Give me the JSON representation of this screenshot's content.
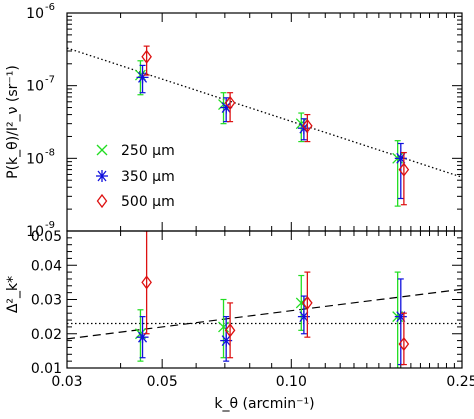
{
  "chart_data": [
    {
      "type": "scatter",
      "panel": "top",
      "xscale": "log",
      "yscale": "log",
      "xlim": [
        0.03,
        0.25
      ],
      "ylim": [
        1e-09,
        1e-06
      ],
      "ylabel": "P(k_θ)/I²_ν   (sr⁻¹)",
      "y_ticks": [
        {
          "value": 1e-09,
          "base": "10",
          "exp": "-9"
        },
        {
          "value": 1e-08,
          "base": "10",
          "exp": "-8"
        },
        {
          "value": 1e-07,
          "base": "10",
          "exp": "-7"
        },
        {
          "value": 1e-06,
          "base": "10",
          "exp": "-6"
        }
      ],
      "fit_line": {
        "style": "dotted",
        "x": [
          0.03,
          0.25
        ],
        "y": [
          3.3e-07,
          5.5e-09
        ]
      },
      "legend_position": "center-left",
      "series": [
        {
          "name": "250 μm",
          "marker": "x",
          "color": "#22dd22",
          "points": [
            {
              "x": 0.0445,
              "y": 1.4e-07,
              "ylo": 7.5e-08,
              "yhi": 2.2e-07
            },
            {
              "x": 0.0695,
              "y": 5.5e-08,
              "ylo": 3e-08,
              "yhi": 8e-08
            },
            {
              "x": 0.1055,
              "y": 3e-08,
              "ylo": 1.7e-08,
              "yhi": 4.2e-08
            },
            {
              "x": 0.177,
              "y": 1e-08,
              "ylo": 2.2e-09,
              "yhi": 1.75e-08
            }
          ]
        },
        {
          "name": "350 μm",
          "marker": "asterisk",
          "color": "#1010dd",
          "points": [
            {
              "x": 0.045,
              "y": 1.3e-07,
              "ylo": 8e-08,
              "yhi": 1.9e-07
            },
            {
              "x": 0.0705,
              "y": 5e-08,
              "ylo": 3.2e-08,
              "yhi": 6.8e-08
            },
            {
              "x": 0.107,
              "y": 2.6e-08,
              "ylo": 1.8e-08,
              "yhi": 3.5e-08
            },
            {
              "x": 0.18,
              "y": 1e-08,
              "ylo": 2.8e-09,
              "yhi": 1.6e-08
            }
          ]
        },
        {
          "name": "500 μm",
          "marker": "diamond",
          "color": "#dd1111",
          "points": [
            {
              "x": 0.046,
              "y": 2.5e-07,
              "ylo": 1.4e-07,
              "yhi": 3.5e-07
            },
            {
              "x": 0.072,
              "y": 5.8e-08,
              "ylo": 3.2e-08,
              "yhi": 8e-08
            },
            {
              "x": 0.109,
              "y": 2.8e-08,
              "ylo": 1.7e-08,
              "yhi": 4e-08
            },
            {
              "x": 0.183,
              "y": 7e-09,
              "ylo": 2.3e-09,
              "yhi": 1.2e-08
            }
          ]
        }
      ]
    },
    {
      "type": "scatter",
      "panel": "bottom",
      "xscale": "log",
      "xlim": [
        0.03,
        0.25
      ],
      "ylim": [
        0.01,
        0.05
      ],
      "ylabel": "Δ²_k*",
      "xlabel": "k_θ (arcmin⁻¹)",
      "x_ticks": [
        {
          "value": 0.03,
          "label": "0.03"
        },
        {
          "value": 0.05,
          "label": "0.05"
        },
        {
          "value": 0.1,
          "label": "0.10"
        },
        {
          "value": 0.25,
          "label": "0.25"
        }
      ],
      "y_ticks": [
        {
          "value": 0.01,
          "label": "0.01"
        },
        {
          "value": 0.02,
          "label": "0.02"
        },
        {
          "value": 0.03,
          "label": "0.03"
        },
        {
          "value": 0.04,
          "label": "0.04"
        },
        {
          "value": 0.05,
          "label": "0.05"
        }
      ],
      "constant_line": {
        "style": "dotted",
        "y": 0.023
      },
      "fit_line": {
        "style": "dashed",
        "x": [
          0.03,
          0.25
        ],
        "y": [
          0.0185,
          0.033
        ]
      },
      "series": [
        {
          "name": "250 μm",
          "marker": "x",
          "color": "#22dd22",
          "points": [
            {
              "x": 0.0445,
              "y": 0.02,
              "ylo": 0.012,
              "yhi": 0.027
            },
            {
              "x": 0.0695,
              "y": 0.022,
              "ylo": 0.013,
              "yhi": 0.03
            },
            {
              "x": 0.1055,
              "y": 0.029,
              "ylo": 0.021,
              "yhi": 0.037
            },
            {
              "x": 0.177,
              "y": 0.025,
              "ylo": 0.01,
              "yhi": 0.038
            }
          ]
        },
        {
          "name": "350 μm",
          "marker": "asterisk",
          "color": "#1010dd",
          "points": [
            {
              "x": 0.045,
              "y": 0.019,
              "ylo": 0.013,
              "yhi": 0.025
            },
            {
              "x": 0.0705,
              "y": 0.018,
              "ylo": 0.012,
              "yhi": 0.025
            },
            {
              "x": 0.107,
              "y": 0.025,
              "ylo": 0.02,
              "yhi": 0.031
            },
            {
              "x": 0.18,
              "y": 0.025,
              "ylo": 0.011,
              "yhi": 0.036
            }
          ]
        },
        {
          "name": "500 μm",
          "marker": "diamond",
          "color": "#dd1111",
          "points": [
            {
              "x": 0.046,
              "y": 0.035,
              "ylo": 0.02,
              "yhi": 0.05
            },
            {
              "x": 0.072,
              "y": 0.021,
              "ylo": 0.013,
              "yhi": 0.029
            },
            {
              "x": 0.109,
              "y": 0.029,
              "ylo": 0.019,
              "yhi": 0.038
            },
            {
              "x": 0.183,
              "y": 0.017,
              "ylo": 0.011,
              "yhi": 0.026
            }
          ]
        }
      ]
    }
  ]
}
